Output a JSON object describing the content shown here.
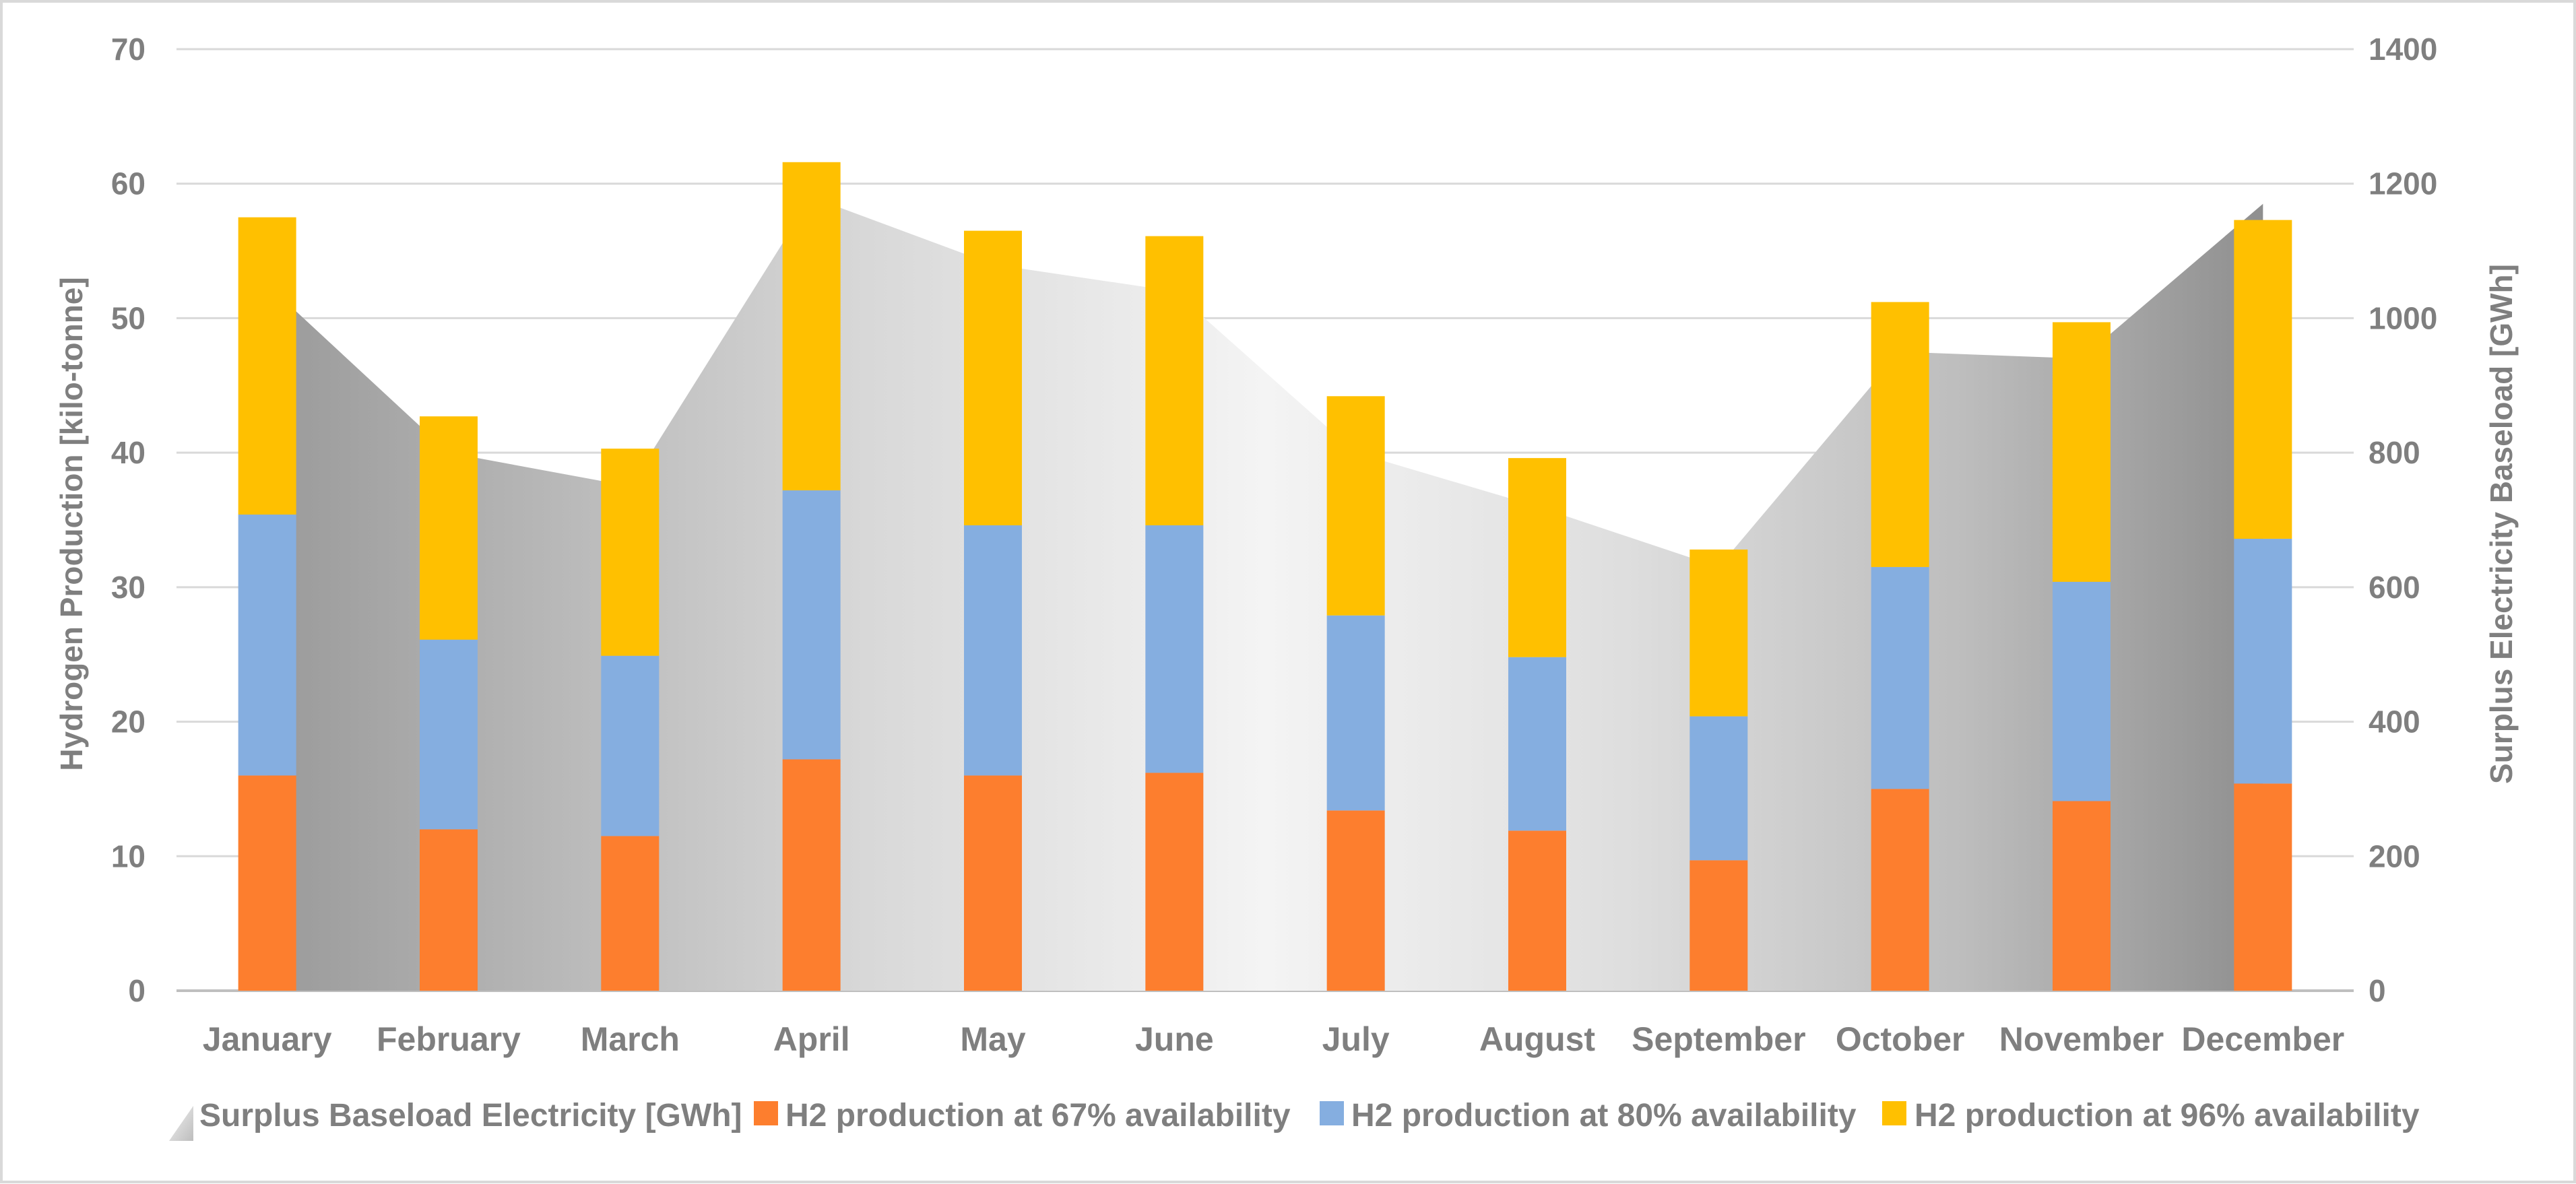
{
  "chart_data": {
    "type": "bar",
    "stacked": true,
    "categories": [
      "January",
      "February",
      "March",
      "April",
      "May",
      "June",
      "July",
      "August",
      "September",
      "October",
      "November",
      "December"
    ],
    "ylabel": "Hydrogen Production [kilo-tonne]",
    "ylabel_right": "Surplus Electricity Baseload [GWh]",
    "ylim": [
      0,
      70
    ],
    "ylim_right": [
      0,
      1400
    ],
    "yticks": [
      "0",
      "10",
      "20",
      "30",
      "40",
      "50",
      "60",
      "70"
    ],
    "yticks_right": [
      "0",
      "200",
      "400",
      "600",
      "800",
      "1000",
      "1200",
      "1400"
    ],
    "grid": true,
    "legend_position": "bottom",
    "area_series": {
      "name": "Surplus Baseload Electricity [GWh]",
      "axis": "right",
      "values": [
        1050,
        800,
        750,
        1180,
        1080,
        1040,
        800,
        720,
        630,
        950,
        940,
        1170
      ]
    },
    "series": [
      {
        "name": "H2 production at 67% availability",
        "color": "#fd7e2e",
        "values": [
          16.0,
          12.0,
          11.5,
          17.2,
          16.0,
          16.2,
          13.4,
          11.9,
          9.7,
          15.0,
          14.1,
          15.4
        ]
      },
      {
        "name": "H2 production at 80% availability",
        "color": "#85aee0",
        "values": [
          19.4,
          14.1,
          13.4,
          20.0,
          18.6,
          18.4,
          14.5,
          12.9,
          10.7,
          16.5,
          16.3,
          18.2
        ]
      },
      {
        "name": "H2 production at 96% availability",
        "color": "#ffc000",
        "values": [
          22.1,
          16.6,
          15.4,
          24.4,
          21.9,
          21.5,
          16.3,
          14.8,
          12.4,
          19.7,
          19.3,
          23.7
        ]
      }
    ]
  }
}
